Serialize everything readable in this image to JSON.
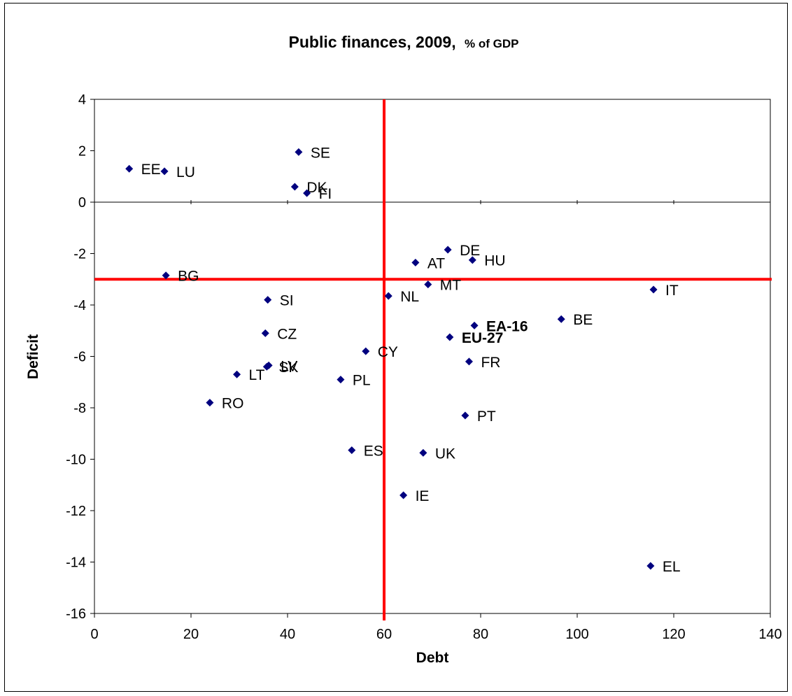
{
  "chart_data": {
    "type": "scatter",
    "title": "Public finances, 2009,",
    "title_suffix": "% of GDP",
    "xlabel": "Debt",
    "ylabel": "Deficit",
    "xlim": [
      0,
      140
    ],
    "ylim": [
      -16,
      4
    ],
    "x_ticks": [
      0,
      20,
      40,
      60,
      80,
      100,
      120,
      140
    ],
    "y_ticks": [
      4,
      2,
      0,
      -2,
      -4,
      -6,
      -8,
      -10,
      -12,
      -14,
      -16
    ],
    "grid": false,
    "legend": "none",
    "reference_lines": {
      "x": 60,
      "y": -3,
      "color": "#ff0000"
    },
    "marker_color": "#00007f",
    "points": [
      {
        "label": "EE",
        "x": 7.2,
        "y": 1.3,
        "bold": false
      },
      {
        "label": "LU",
        "x": 14.5,
        "y": 1.2,
        "bold": false
      },
      {
        "label": "SE",
        "x": 42.3,
        "y": 1.95,
        "bold": false
      },
      {
        "label": "DK",
        "x": 41.5,
        "y": 0.6,
        "bold": false
      },
      {
        "label": "FI",
        "x": 44.0,
        "y": 0.35,
        "bold": false
      },
      {
        "label": "BG",
        "x": 14.8,
        "y": -2.85,
        "bold": false
      },
      {
        "label": "DE",
        "x": 73.2,
        "y": -1.85,
        "bold": false
      },
      {
        "label": "HU",
        "x": 78.3,
        "y": -2.25,
        "bold": false
      },
      {
        "label": "AT",
        "x": 66.5,
        "y": -2.35,
        "bold": false
      },
      {
        "label": "MT",
        "x": 69.1,
        "y": -3.2,
        "bold": false
      },
      {
        "label": "IT",
        "x": 115.8,
        "y": -3.4,
        "bold": false
      },
      {
        "label": "NL",
        "x": 60.9,
        "y": -3.65,
        "bold": false
      },
      {
        "label": "SI",
        "x": 35.9,
        "y": -3.8,
        "bold": false
      },
      {
        "label": "BE",
        "x": 96.7,
        "y": -4.55,
        "bold": false
      },
      {
        "label": "EA-16",
        "x": 78.7,
        "y": -4.8,
        "bold": true
      },
      {
        "label": "EU-27",
        "x": 73.6,
        "y": -5.25,
        "bold": true
      },
      {
        "label": "CZ",
        "x": 35.4,
        "y": -5.1,
        "bold": false
      },
      {
        "label": "CY",
        "x": 56.2,
        "y": -5.8,
        "bold": false
      },
      {
        "label": "FR",
        "x": 77.6,
        "y": -6.2,
        "bold": false
      },
      {
        "label": "LV",
        "x": 36.1,
        "y": -6.35,
        "bold": false
      },
      {
        "label": "SK",
        "x": 35.7,
        "y": -6.4,
        "bold": false
      },
      {
        "label": "LT",
        "x": 29.5,
        "y": -6.7,
        "bold": false
      },
      {
        "label": "PL",
        "x": 51.0,
        "y": -6.9,
        "bold": false
      },
      {
        "label": "RO",
        "x": 23.9,
        "y": -7.8,
        "bold": false
      },
      {
        "label": "PT",
        "x": 76.8,
        "y": -8.3,
        "bold": false
      },
      {
        "label": "ES",
        "x": 53.3,
        "y": -9.65,
        "bold": false
      },
      {
        "label": "UK",
        "x": 68.1,
        "y": -9.75,
        "bold": false
      },
      {
        "label": "IE",
        "x": 64.0,
        "y": -11.4,
        "bold": false
      },
      {
        "label": "EL",
        "x": 115.2,
        "y": -14.15,
        "bold": false
      }
    ]
  }
}
